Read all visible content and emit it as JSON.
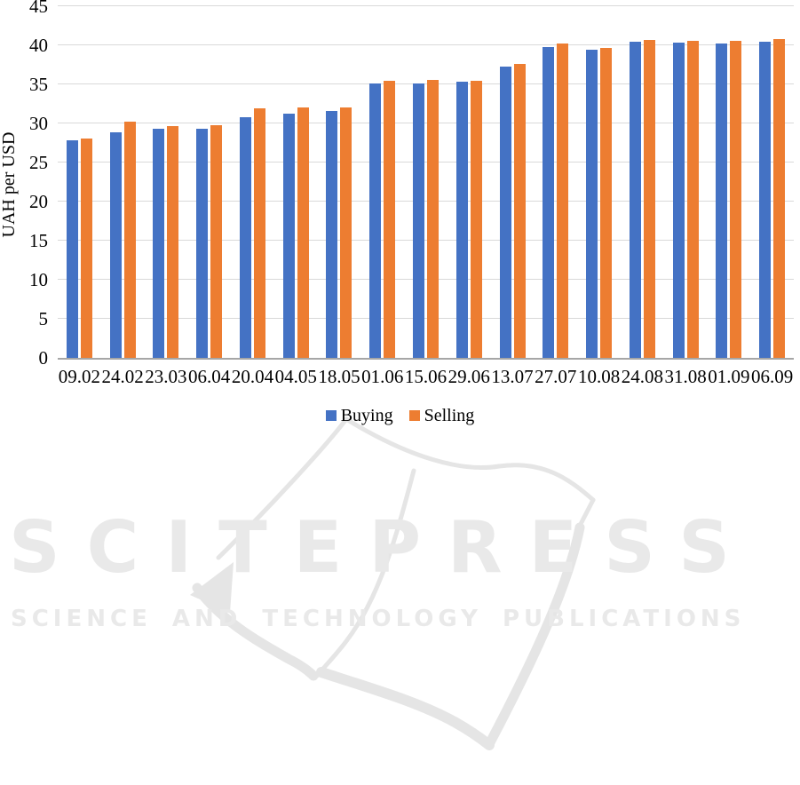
{
  "chart_data": {
    "type": "bar",
    "title": "",
    "xlabel": "",
    "ylabel": "UAH per USD",
    "ylim": [
      0,
      45
    ],
    "yticks": [
      0,
      5,
      10,
      15,
      20,
      25,
      30,
      35,
      40,
      45
    ],
    "grid": true,
    "legend_position": "bottom",
    "categories": [
      "09.02",
      "24.02",
      "23.03",
      "06.04",
      "20.04",
      "04.05",
      "18.05",
      "01.06",
      "15.06",
      "29.06",
      "13.07",
      "27.07",
      "10.08",
      "24.08",
      "31.08",
      "01.09",
      "06.09"
    ],
    "series": [
      {
        "name": "Buying",
        "color": "#4472C4",
        "values": [
          27.8,
          28.9,
          29.3,
          29.3,
          30.8,
          31.3,
          31.6,
          35.1,
          35.1,
          35.3,
          37.3,
          39.8,
          39.4,
          40.5,
          40.3,
          40.2,
          40.5
        ]
      },
      {
        "name": "Selling",
        "color": "#ED7D31",
        "values": [
          28.1,
          30.2,
          29.7,
          29.8,
          31.9,
          32.1,
          32.1,
          35.4,
          35.6,
          35.5,
          37.6,
          40.2,
          39.7,
          40.7,
          40.6,
          40.6,
          40.8
        ]
      }
    ]
  },
  "watermark": {
    "logo_text": "SCITEPRESS",
    "tagline": "SCIENCE AND TECHNOLOGY PUBLICATIONS",
    "text_color": "#e9e9e9",
    "line_color": "#e5e5e5"
  },
  "style": {
    "grid_color": "#d9d9d9",
    "axis_color": "#a6a6a6",
    "text_color": "#000000",
    "background": "#ffffff"
  }
}
